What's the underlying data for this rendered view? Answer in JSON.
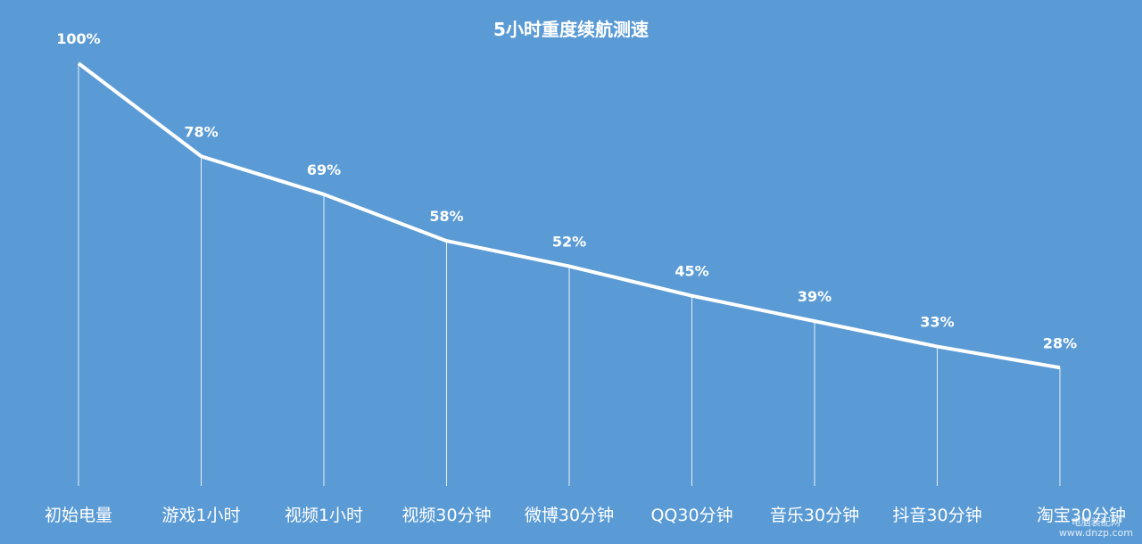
{
  "chart_data": {
    "type": "line",
    "title": "5小时重度续航测速",
    "categories": [
      "初始电量",
      "游戏1小时",
      "视频1小时",
      "视频30分钟",
      "微博30分钟",
      "QQ30分钟",
      "音乐30分钟",
      "抖音30分钟",
      "淘宝30分钟"
    ],
    "values": [
      100,
      78,
      69,
      58,
      52,
      45,
      39,
      33,
      28
    ],
    "data_labels": [
      "100%",
      "78%",
      "69%",
      "58%",
      "52%",
      "45%",
      "39%",
      "33%",
      "28%"
    ],
    "xlabel": "",
    "ylabel": "",
    "ylim": [
      0,
      100
    ],
    "grid": false,
    "line_color": "#ffffff",
    "background_color": "#5b9bd5"
  },
  "watermark": {
    "line1": "电脑装配网",
    "line2": "www.dnzp.com"
  }
}
